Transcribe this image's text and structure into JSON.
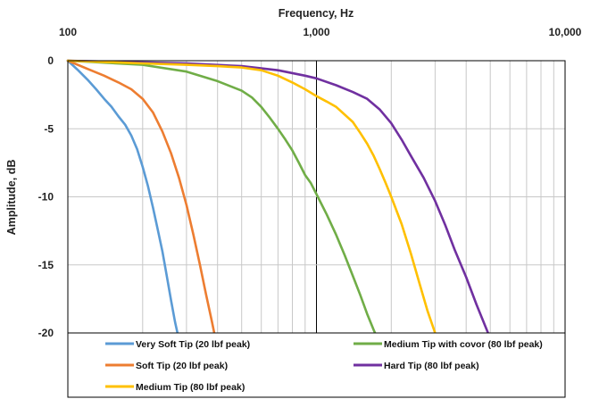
{
  "chart_data": {
    "type": "line",
    "title": "",
    "xlabel": "Frequency, Hz",
    "ylabel": "Amplitude, dB",
    "xscale": "log",
    "xlim": [
      100,
      10000
    ],
    "ylim": [
      -20,
      0
    ],
    "x_ticks": [
      {
        "value": 100,
        "label": "100"
      },
      {
        "value": 1000,
        "label": "1,000"
      },
      {
        "value": 10000,
        "label": "10,000"
      }
    ],
    "y_ticks": [
      {
        "value": 0,
        "label": "0"
      },
      {
        "value": -5,
        "label": "-5"
      },
      {
        "value": -10,
        "label": "-10"
      },
      {
        "value": -15,
        "label": "-15"
      },
      {
        "value": -20,
        "label": "-20"
      }
    ],
    "x_axis_position": "top",
    "grid": true,
    "legend_position": "bottom",
    "series": [
      {
        "name": "Very Soft Tip (20 lbf peak)",
        "color": "#5B9BD5",
        "points": [
          [
            100,
            0
          ],
          [
            110,
            -0.7
          ],
          [
            120,
            -1.4
          ],
          [
            130,
            -2.1
          ],
          [
            140,
            -2.8
          ],
          [
            150,
            -3.4
          ],
          [
            160,
            -4.1
          ],
          [
            170,
            -4.7
          ],
          [
            180,
            -5.5
          ],
          [
            190,
            -6.5
          ],
          [
            200,
            -7.8
          ],
          [
            210,
            -9.2
          ],
          [
            220,
            -10.8
          ],
          [
            230,
            -12.4
          ],
          [
            240,
            -14.0
          ],
          [
            250,
            -15.8
          ],
          [
            260,
            -17.6
          ],
          [
            270,
            -19.2
          ],
          [
            276,
            -20
          ]
        ]
      },
      {
        "name": "Soft Tip (20 lbf peak)",
        "color": "#ED7D31",
        "points": [
          [
            100,
            0
          ],
          [
            120,
            -0.6
          ],
          [
            140,
            -1.1
          ],
          [
            160,
            -1.6
          ],
          [
            180,
            -2.1
          ],
          [
            200,
            -2.8
          ],
          [
            220,
            -3.8
          ],
          [
            240,
            -5.2
          ],
          [
            260,
            -6.8
          ],
          [
            280,
            -8.6
          ],
          [
            300,
            -10.6
          ],
          [
            320,
            -12.8
          ],
          [
            340,
            -15.0
          ],
          [
            360,
            -17.2
          ],
          [
            380,
            -19.2
          ],
          [
            388,
            -20
          ]
        ]
      },
      {
        "name": "Medium Tip with covor (80 lbf peak)",
        "color": "#70AD47",
        "points": [
          [
            100,
            0
          ],
          [
            200,
            -0.3
          ],
          [
            300,
            -0.8
          ],
          [
            400,
            -1.5
          ],
          [
            500,
            -2.2
          ],
          [
            550,
            -2.7
          ],
          [
            600,
            -3.4
          ],
          [
            650,
            -4.2
          ],
          [
            700,
            -5.0
          ],
          [
            750,
            -5.8
          ],
          [
            800,
            -6.6
          ],
          [
            850,
            -7.5
          ],
          [
            900,
            -8.4
          ],
          [
            950,
            -9.0
          ],
          [
            1000,
            -9.8
          ],
          [
            1100,
            -11.3
          ],
          [
            1200,
            -12.8
          ],
          [
            1300,
            -14.3
          ],
          [
            1400,
            -15.8
          ],
          [
            1500,
            -17.2
          ],
          [
            1600,
            -18.6
          ],
          [
            1700,
            -19.8
          ],
          [
            1720,
            -20
          ]
        ]
      },
      {
        "name": "Hard Tip (80 lbf peak)",
        "color": "#7030A0",
        "points": [
          [
            100,
            0
          ],
          [
            300,
            -0.2
          ],
          [
            500,
            -0.4
          ],
          [
            700,
            -0.7
          ],
          [
            900,
            -1.1
          ],
          [
            1000,
            -1.3
          ],
          [
            1200,
            -1.8
          ],
          [
            1400,
            -2.3
          ],
          [
            1600,
            -2.8
          ],
          [
            1800,
            -3.6
          ],
          [
            2000,
            -4.6
          ],
          [
            2200,
            -5.8
          ],
          [
            2400,
            -7.0
          ],
          [
            2700,
            -8.6
          ],
          [
            3000,
            -10.3
          ],
          [
            3300,
            -12.1
          ],
          [
            3600,
            -13.9
          ],
          [
            4000,
            -15.9
          ],
          [
            4400,
            -17.9
          ],
          [
            4800,
            -19.6
          ],
          [
            4900,
            -20
          ]
        ]
      },
      {
        "name": "Medium Tip (80 lbf peak)",
        "color": "#FFC000",
        "points": [
          [
            100,
            0
          ],
          [
            200,
            -0.2
          ],
          [
            300,
            -0.3
          ],
          [
            400,
            -0.4
          ],
          [
            500,
            -0.5
          ],
          [
            600,
            -0.7
          ],
          [
            700,
            -1.1
          ],
          [
            800,
            -1.6
          ],
          [
            900,
            -2.1
          ],
          [
            1000,
            -2.6
          ],
          [
            1100,
            -3.0
          ],
          [
            1200,
            -3.4
          ],
          [
            1400,
            -4.5
          ],
          [
            1500,
            -5.3
          ],
          [
            1600,
            -6.1
          ],
          [
            1700,
            -7.0
          ],
          [
            1800,
            -8.0
          ],
          [
            1900,
            -9.0
          ],
          [
            2000,
            -10.0
          ],
          [
            2200,
            -12.0
          ],
          [
            2400,
            -14.2
          ],
          [
            2600,
            -16.4
          ],
          [
            2800,
            -18.4
          ],
          [
            3000,
            -20
          ]
        ]
      }
    ]
  }
}
